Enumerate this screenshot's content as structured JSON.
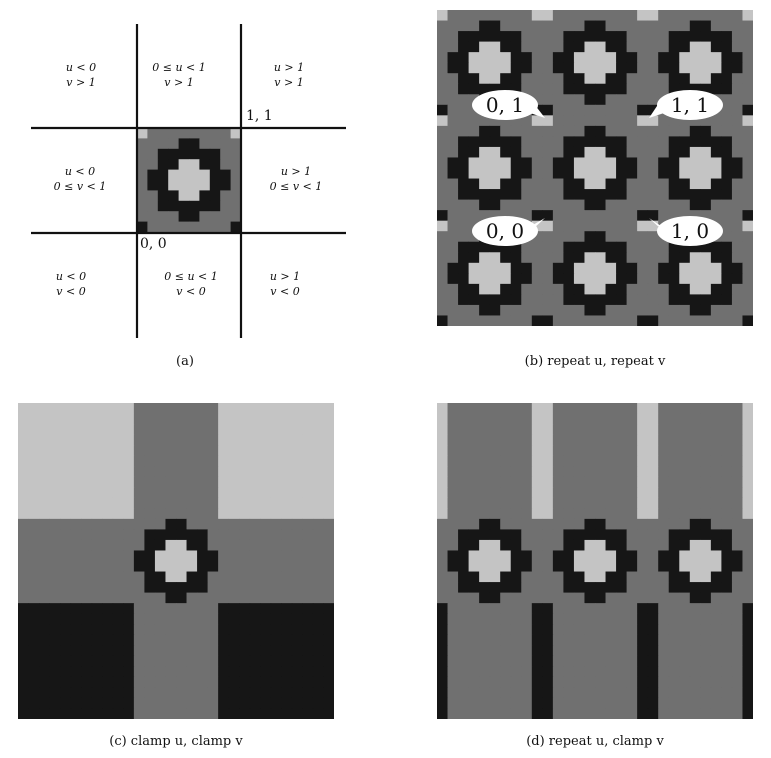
{
  "colors": {
    "black": "#161616",
    "dark_gray": "#707070",
    "light_gray": "#c4c4c4",
    "white": "#ffffff"
  },
  "texture": {
    "grid_size": 10,
    "legend": {
      "B": "black",
      "D": "dark_gray",
      "L": "light_gray"
    },
    "rows": [
      "LDDDDDDDDL",
      "DDDDBBDDDD",
      "DDBBBBBBDD",
      "DDBBLLBBDD",
      "DBBLLLLBBD",
      "DBBLLLLBBD",
      "DDBBLLBBDD",
      "DDBBBBBBDD",
      "DDDDBBDDDD",
      "BDDDDDDDDB"
    ]
  },
  "panel_a": {
    "caption": "(a)",
    "regions": {
      "top_left": [
        "u < 0",
        "v > 1"
      ],
      "top_mid": [
        "0 ≤ u < 1",
        "v > 1"
      ],
      "top_right": [
        "u > 1",
        "v > 1"
      ],
      "mid_left": [
        "u < 0",
        "0 ≤ v < 1"
      ],
      "mid_right": [
        "u > 1",
        "0 ≤ v < 1"
      ],
      "bot_left": [
        "u < 0",
        "v < 0"
      ],
      "bot_mid": [
        "0 ≤ u < 1",
        "v < 0"
      ],
      "bot_right": [
        "u > 1",
        "v < 0"
      ]
    },
    "corner_11": "1, 1",
    "corner_00": "0, 0"
  },
  "panel_b": {
    "caption": "(b) repeat u, repeat v",
    "labels": {
      "tl": "0, 1",
      "tr": "1, 1",
      "bl": "0, 0",
      "br": "1, 0"
    }
  },
  "panel_c": {
    "caption": "(c) clamp u, clamp v"
  },
  "panel_d": {
    "caption": "(d) repeat u, clamp v"
  }
}
